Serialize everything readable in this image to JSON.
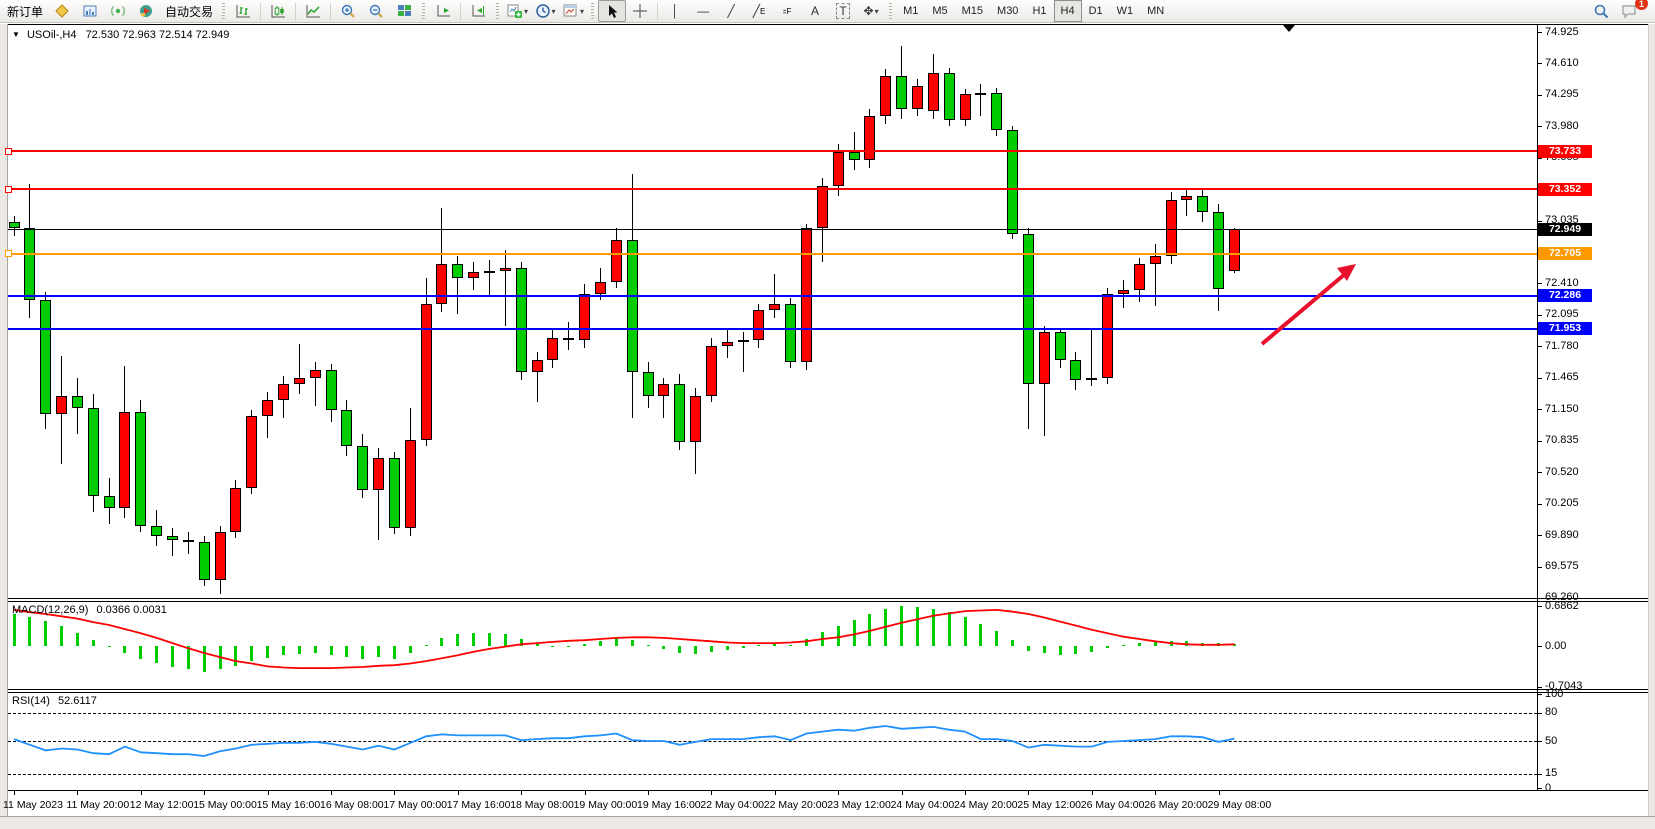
{
  "toolbar": {
    "new_order": "新订单",
    "auto_trading": "自动交易",
    "timeframes": [
      "M1",
      "M5",
      "M15",
      "M30",
      "H1",
      "H4",
      "D1",
      "W1",
      "MN"
    ],
    "active_timeframe": "H4",
    "notification_badge": "1",
    "glyphs": {
      "crosshair": "＋",
      "vertical_line": "│",
      "horizontal_line": "—",
      "trendline": "╱",
      "channel": "╱",
      "channel_suffix": "E",
      "fibonacci": "⹀",
      "fibonacci_suffix": "F",
      "text_tool": "A",
      "label_tool": "T",
      "arrows_tool": "✥",
      "dropdown": "▾"
    }
  },
  "chart": {
    "collapse_glyph": "▼",
    "symbol": "USOil-,H4",
    "ohlc": "72.530 72.963 72.514 72.949",
    "price_ticks": [
      "74.925",
      "74.610",
      "74.295",
      "73.980",
      "73.665",
      "73.035",
      "72.410",
      "72.095",
      "71.780",
      "71.465",
      "71.150",
      "70.835",
      "70.520",
      "70.205",
      "69.890",
      "69.575",
      "69.260"
    ],
    "levels": [
      {
        "name": "resistance-1",
        "price": 73.733,
        "label": "73.733",
        "color": "#ff0000",
        "width": 2,
        "anchor": true
      },
      {
        "name": "resistance-2",
        "price": 73.352,
        "label": "73.352",
        "color": "#ff0000",
        "width": 2,
        "anchor": true
      },
      {
        "name": "current-price",
        "price": 72.949,
        "label": "72.949",
        "color": "#000000",
        "width": 1,
        "anchor": false
      },
      {
        "name": "pivot-line",
        "price": 72.705,
        "label": "72.705",
        "color": "#ff9900",
        "width": 2,
        "anchor": true
      },
      {
        "name": "support-1",
        "price": 72.286,
        "label": "72.286",
        "color": "#0000ff",
        "width": 2,
        "anchor": false
      },
      {
        "name": "support-2",
        "price": 71.953,
        "label": "71.953",
        "color": "#0000ff",
        "width": 2,
        "anchor": false
      }
    ]
  },
  "chart_data": {
    "type": "candlestick",
    "symbol": "USOil",
    "timeframe": "H4",
    "title": "USOil-,H4 72.530 72.963 72.514 72.949",
    "last_candle": {
      "open": 72.53,
      "high": 72.963,
      "low": 72.514,
      "close": 72.949
    },
    "price_axis_range": [
      69.26,
      74.925
    ],
    "up_color": "#ff0000",
    "down_color": "#00cc00",
    "time_labels": [
      "11 May 2023",
      "11 May 20:00",
      "12 May 12:00",
      "15 May 00:00",
      "15 May 16:00",
      "16 May 08:00",
      "17 May 00:00",
      "17 May 16:00",
      "18 May 08:00",
      "19 May 00:00",
      "19 May 16:00",
      "22 May 04:00",
      "22 May 20:00",
      "23 May 12:00",
      "24 May 04:00",
      "24 May 20:00",
      "25 May 12:00",
      "26 May 04:00",
      "26 May 20:00",
      "29 May 08:00"
    ],
    "candles_ohlc": [
      [
        73.02,
        73.08,
        72.88,
        72.96
      ],
      [
        72.96,
        73.4,
        72.06,
        72.24
      ],
      [
        72.24,
        72.32,
        70.95,
        71.1
      ],
      [
        71.1,
        71.68,
        70.6,
        71.28
      ],
      [
        71.28,
        71.46,
        70.9,
        71.16
      ],
      [
        71.16,
        71.3,
        70.12,
        70.28
      ],
      [
        70.28,
        70.46,
        70.0,
        70.16
      ],
      [
        70.16,
        71.58,
        70.06,
        71.12
      ],
      [
        71.12,
        71.24,
        69.92,
        69.98
      ],
      [
        69.98,
        70.14,
        69.78,
        69.88
      ],
      [
        69.88,
        69.96,
        69.68,
        69.84
      ],
      [
        69.84,
        69.92,
        69.7,
        69.82
      ],
      [
        69.82,
        69.88,
        69.38,
        69.44
      ],
      [
        69.44,
        69.98,
        69.3,
        69.92
      ],
      [
        69.92,
        70.44,
        69.86,
        70.36
      ],
      [
        70.36,
        71.14,
        70.3,
        71.08
      ],
      [
        71.08,
        71.32,
        70.86,
        71.24
      ],
      [
        71.24,
        71.48,
        71.06,
        71.4
      ],
      [
        71.4,
        71.8,
        71.3,
        71.46
      ],
      [
        71.46,
        71.62,
        71.18,
        71.54
      ],
      [
        71.54,
        71.6,
        71.02,
        71.14
      ],
      [
        71.14,
        71.24,
        70.68,
        70.78
      ],
      [
        70.78,
        70.9,
        70.26,
        70.34
      ],
      [
        70.34,
        70.76,
        69.84,
        70.66
      ],
      [
        70.66,
        70.72,
        69.9,
        69.96
      ],
      [
        69.96,
        71.16,
        69.88,
        70.84
      ],
      [
        70.84,
        72.46,
        70.78,
        72.2
      ],
      [
        72.2,
        73.16,
        72.12,
        72.6
      ],
      [
        72.6,
        72.68,
        72.1,
        72.46
      ],
      [
        72.46,
        72.62,
        72.34,
        72.52
      ],
      [
        72.52,
        72.64,
        72.28,
        72.53
      ],
      [
        72.53,
        72.74,
        71.98,
        72.56
      ],
      [
        72.56,
        72.62,
        71.44,
        71.52
      ],
      [
        71.52,
        71.72,
        71.22,
        71.64
      ],
      [
        71.64,
        71.94,
        71.56,
        71.86
      ],
      [
        71.86,
        72.02,
        71.74,
        71.84
      ],
      [
        71.84,
        72.4,
        71.76,
        72.3
      ],
      [
        72.3,
        72.56,
        72.24,
        72.42
      ],
      [
        72.42,
        72.96,
        72.36,
        72.84
      ],
      [
        72.84,
        73.5,
        71.06,
        71.52
      ],
      [
        71.52,
        71.62,
        71.16,
        71.28
      ],
      [
        71.28,
        71.46,
        71.06,
        71.4
      ],
      [
        71.4,
        71.5,
        70.74,
        70.82
      ],
      [
        70.82,
        71.36,
        70.5,
        71.28
      ],
      [
        71.28,
        71.86,
        71.22,
        71.78
      ],
      [
        71.78,
        71.96,
        71.66,
        71.82
      ],
      [
        71.82,
        71.92,
        71.52,
        71.84
      ],
      [
        71.84,
        72.2,
        71.76,
        72.14
      ],
      [
        72.14,
        72.5,
        72.06,
        72.2
      ],
      [
        72.2,
        72.26,
        71.56,
        71.62
      ],
      [
        71.62,
        73.0,
        71.54,
        72.96
      ],
      [
        72.96,
        73.46,
        72.62,
        73.38
      ],
      [
        73.38,
        73.8,
        73.28,
        73.72
      ],
      [
        73.72,
        73.92,
        73.54,
        73.64
      ],
      [
        73.64,
        74.15,
        73.56,
        74.08
      ],
      [
        74.08,
        74.55,
        74.0,
        74.48
      ],
      [
        74.48,
        74.78,
        74.05,
        74.15
      ],
      [
        74.15,
        74.45,
        74.08,
        74.38
      ],
      [
        74.13,
        74.7,
        74.05,
        74.51
      ],
      [
        74.51,
        74.56,
        73.98,
        74.04
      ],
      [
        74.04,
        74.35,
        73.98,
        74.3
      ],
      [
        74.3,
        74.4,
        74.08,
        74.31
      ],
      [
        74.31,
        74.36,
        73.88,
        73.94
      ],
      [
        73.94,
        73.98,
        72.85,
        72.9
      ],
      [
        72.9,
        72.96,
        70.95,
        71.4
      ],
      [
        71.4,
        71.98,
        70.88,
        71.92
      ],
      [
        71.92,
        71.96,
        71.56,
        71.64
      ],
      [
        71.64,
        71.72,
        71.34,
        71.44
      ],
      [
        71.44,
        71.96,
        71.38,
        71.46
      ],
      [
        71.46,
        72.36,
        71.4,
        72.3
      ],
      [
        72.3,
        72.44,
        72.16,
        72.34
      ],
      [
        72.34,
        72.66,
        72.22,
        72.6
      ],
      [
        72.6,
        72.8,
        72.18,
        72.68
      ],
      [
        72.68,
        73.32,
        72.6,
        73.24
      ],
      [
        73.24,
        73.34,
        73.08,
        73.28
      ],
      [
        73.28,
        73.36,
        73.02,
        73.12
      ],
      [
        73.12,
        73.2,
        72.13,
        72.35
      ],
      [
        72.53,
        72.963,
        72.514,
        72.949
      ]
    ],
    "indicators": {
      "macd": {
        "label": "MACD(12,26,9)",
        "values_label": "0.0366 0.0031",
        "axis_ticks": [
          "0.6862",
          "0.00",
          "-0.7043"
        ],
        "range": [
          -0.7043,
          0.6862
        ],
        "histogram_color": "#00cc00",
        "signal_color": "#ff0000",
        "histogram": [
          0.55,
          0.5,
          0.43,
          0.34,
          0.22,
          0.1,
          -0.02,
          -0.12,
          -0.22,
          -0.3,
          -0.36,
          -0.4,
          -0.44,
          -0.4,
          -0.34,
          -0.26,
          -0.2,
          -0.16,
          -0.14,
          -0.12,
          -0.15,
          -0.19,
          -0.23,
          -0.19,
          -0.22,
          -0.12,
          0.02,
          0.14,
          0.2,
          0.22,
          0.22,
          0.2,
          0.12,
          0.04,
          -0.01,
          -0.02,
          0.03,
          0.09,
          0.15,
          0.1,
          0.02,
          -0.05,
          -0.12,
          -0.14,
          -0.1,
          -0.07,
          -0.04,
          0.01,
          0.05,
          0.02,
          0.12,
          0.24,
          0.35,
          0.44,
          0.55,
          0.64,
          0.68,
          0.67,
          0.64,
          0.58,
          0.5,
          0.38,
          0.25,
          0.1,
          -0.08,
          -0.12,
          -0.15,
          -0.14,
          -0.1,
          -0.04,
          0.01,
          0.05,
          0.08,
          0.09,
          0.08,
          0.06,
          0.05,
          0.04
        ],
        "signal": [
          0.62,
          0.58,
          0.55,
          0.51,
          0.47,
          0.41,
          0.36,
          0.29,
          0.22,
          0.14,
          0.05,
          -0.04,
          -0.12,
          -0.19,
          -0.26,
          -0.3,
          -0.35,
          -0.37,
          -0.38,
          -0.38,
          -0.38,
          -0.37,
          -0.36,
          -0.34,
          -0.33,
          -0.3,
          -0.26,
          -0.21,
          -0.16,
          -0.1,
          -0.05,
          -0.01,
          0.03,
          0.05,
          0.07,
          0.09,
          0.1,
          0.12,
          0.14,
          0.15,
          0.15,
          0.14,
          0.12,
          0.1,
          0.08,
          0.06,
          0.05,
          0.05,
          0.05,
          0.06,
          0.08,
          0.12,
          0.15,
          0.2,
          0.26,
          0.33,
          0.4,
          0.46,
          0.52,
          0.56,
          0.6,
          0.61,
          0.62,
          0.59,
          0.55,
          0.49,
          0.42,
          0.35,
          0.28,
          0.22,
          0.16,
          0.12,
          0.08,
          0.05,
          0.03,
          0.02,
          0.02,
          0.03
        ]
      },
      "rsi": {
        "label": "RSI(14)",
        "value_label": "52.6117",
        "axis_ticks": [
          "100",
          "80",
          "50",
          "15",
          "0"
        ],
        "levels": [
          80,
          50,
          15
        ],
        "range": [
          0,
          100
        ],
        "color": "#1e90ff",
        "values": [
          52,
          46,
          40,
          42,
          41,
          37,
          36,
          44,
          38,
          37,
          36,
          36,
          34,
          39,
          42,
          46,
          47,
          48,
          48,
          49,
          47,
          44,
          41,
          45,
          41,
          48,
          55,
          57,
          56,
          56,
          56,
          56,
          51,
          52,
          53,
          53,
          55,
          56,
          58,
          51,
          50,
          50,
          46,
          49,
          52,
          52,
          52,
          54,
          55,
          51,
          58,
          60,
          62,
          61,
          64,
          66,
          63,
          64,
          65,
          62,
          60,
          52,
          52,
          50,
          43,
          46,
          45,
          44,
          44,
          49,
          50,
          51,
          52,
          55,
          55,
          54,
          49,
          52.6
        ]
      }
    },
    "annotations": [
      {
        "type": "arrow",
        "color": "#e8102a",
        "note": "upward red arrow from support 71.953 toward 72.7",
        "from": [
          1262,
          344
        ],
        "to": [
          1345,
          274
        ]
      }
    ]
  }
}
